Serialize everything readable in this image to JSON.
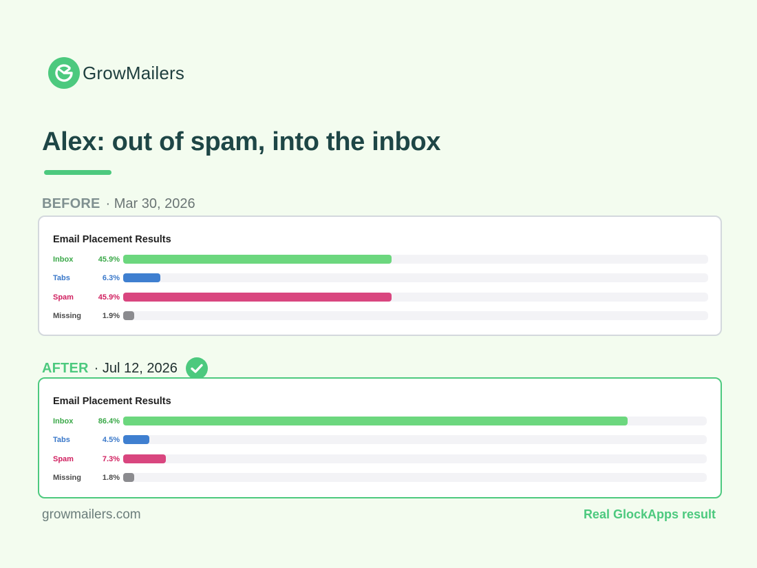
{
  "brand": {
    "name": "GrowMailers",
    "logo_icon": "growmailers-logo-icon",
    "accent": "#4cc97e"
  },
  "headline": "Alex: out of spam, into the inbox",
  "before": {
    "label": "BEFORE",
    "date": "· Mar 30, 2026"
  },
  "after": {
    "label": "AFTER",
    "date": "· Jul 12, 2026",
    "icon": "check-circle-icon"
  },
  "footer": {
    "site": "growmailers.com",
    "note": "Real GlockApps result"
  },
  "chart_data": [
    {
      "type": "bar",
      "orientation": "horizontal",
      "title": "Email Placement Results",
      "categories": [
        "Inbox",
        "Tabs",
        "Spam",
        "Missing"
      ],
      "values": [
        45.9,
        6.3,
        45.9,
        1.9
      ],
      "labels": [
        "45.9%",
        "6.3%",
        "45.9%",
        "1.9%"
      ],
      "colors": [
        "#6cd77e",
        "#3f7fd0",
        "#d9467f",
        "#8b8b8f"
      ],
      "label_colors": [
        "#3aa848",
        "#3a78c9",
        "#d01f5f",
        "#4a4a4a"
      ],
      "xlim": [
        0,
        100
      ],
      "grid": false,
      "legend": "none"
    },
    {
      "type": "bar",
      "orientation": "horizontal",
      "title": "Email Placement Results",
      "categories": [
        "Inbox",
        "Tabs",
        "Spam",
        "Missing"
      ],
      "values": [
        86.4,
        4.5,
        7.3,
        1.8
      ],
      "labels": [
        "86.4%",
        "4.5%",
        "7.3%",
        "1.8%"
      ],
      "colors": [
        "#6cd77e",
        "#3f7fd0",
        "#d9467f",
        "#8b8b8f"
      ],
      "label_colors": [
        "#3aa848",
        "#3a78c9",
        "#d01f5f",
        "#4a4a4a"
      ],
      "xlim": [
        0,
        100
      ],
      "grid": false,
      "legend": "none"
    }
  ]
}
